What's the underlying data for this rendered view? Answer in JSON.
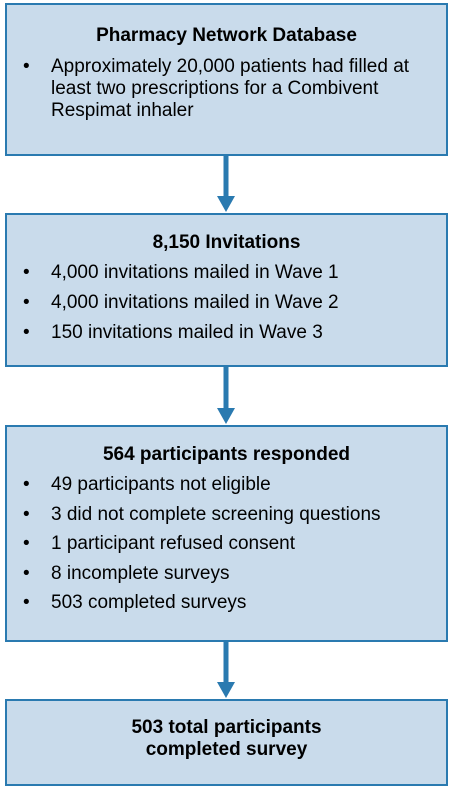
{
  "boxes": [
    {
      "title": "Pharmacy Network Database",
      "bullets": [
        "Approximately 20,000 patients had filled at least two prescriptions for a Combivent Respimat inhaler"
      ]
    },
    {
      "title": "8,150 Invitations",
      "bullets": [
        "4,000 invitations mailed in Wave 1",
        "4,000 invitations mailed in Wave 2",
        "150 invitations mailed in Wave 3"
      ]
    },
    {
      "title": "564 participants responded",
      "bullets": [
        "49 participants not eligible",
        "3 did not complete screening questions",
        "1 participant refused consent",
        "8 incomplete surveys",
        "503 completed surveys"
      ]
    },
    {
      "title_line1": "503 total participants",
      "title_line2": "completed survey"
    }
  ],
  "bullet_symbol": "•",
  "colors": {
    "box_fill": "#c9dbeb",
    "box_border": "#2a7ab0",
    "arrow": "#2a7ab0"
  }
}
